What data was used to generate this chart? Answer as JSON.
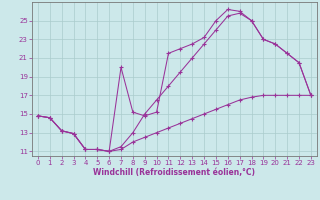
{
  "xlabel": "Windchill (Refroidissement éolien,°C)",
  "bg_color": "#cce8ea",
  "line_color": "#993399",
  "grid_color": "#aacccc",
  "x": [
    0,
    1,
    2,
    3,
    4,
    5,
    6,
    7,
    8,
    9,
    10,
    11,
    12,
    13,
    14,
    15,
    16,
    17,
    18,
    19,
    20,
    21,
    22,
    23
  ],
  "y_low": [
    14.8,
    14.6,
    13.2,
    12.9,
    11.2,
    11.2,
    11.0,
    11.2,
    12.0,
    12.5,
    13.0,
    13.5,
    14.0,
    14.5,
    15.0,
    15.5,
    16.0,
    16.5,
    16.8,
    17.0,
    17.0,
    17.0,
    17.0,
    17.0
  ],
  "y_spiky": [
    14.8,
    14.6,
    13.2,
    12.9,
    11.2,
    11.2,
    11.0,
    20.0,
    15.2,
    14.8,
    15.2,
    21.5,
    22.0,
    22.5,
    23.2,
    25.0,
    26.2,
    26.0,
    25.0,
    23.0,
    22.5,
    21.5,
    20.5,
    17.0
  ],
  "y_smooth": [
    14.8,
    14.6,
    13.2,
    12.9,
    11.2,
    11.2,
    11.0,
    11.5,
    13.0,
    15.0,
    16.5,
    18.0,
    19.5,
    21.0,
    22.5,
    24.0,
    25.5,
    25.8,
    25.0,
    23.0,
    22.5,
    21.5,
    20.5,
    17.0
  ],
  "ylim": [
    10.5,
    27.0
  ],
  "xlim": [
    -0.5,
    23.5
  ],
  "yticks": [
    11,
    13,
    15,
    17,
    19,
    21,
    23,
    25
  ],
  "xticks": [
    0,
    1,
    2,
    3,
    4,
    5,
    6,
    7,
    8,
    9,
    10,
    11,
    12,
    13,
    14,
    15,
    16,
    17,
    18,
    19,
    20,
    21,
    22,
    23
  ],
  "tick_fontsize": 5.0,
  "xlabel_fontsize": 5.5
}
